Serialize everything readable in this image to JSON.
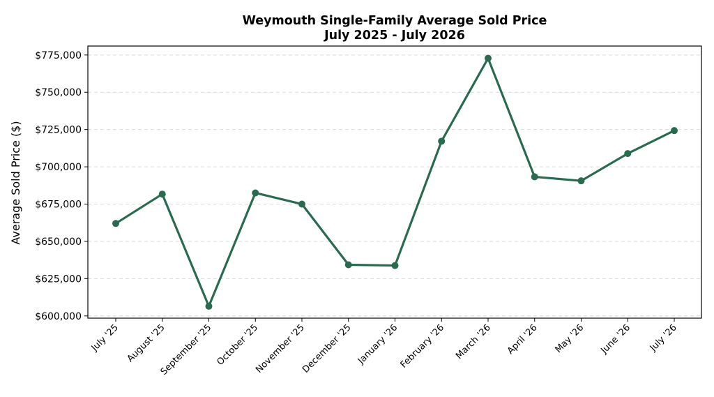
{
  "chart_data": {
    "type": "line",
    "title_line1": "Weymouth Single-Family Average Sold Price",
    "title_line2": "July 2025 - July 2026",
    "xlabel": "",
    "ylabel": "Average Sold Price ($)",
    "ylim": [
      598500,
      781000
    ],
    "yticks": [
      600000,
      625000,
      650000,
      675000,
      700000,
      725000,
      750000,
      775000
    ],
    "ytick_labels": [
      "$600,000",
      "$625,000",
      "$650,000",
      "$675,000",
      "$700,000",
      "$725,000",
      "$750,000",
      "$775,000"
    ],
    "grid": true,
    "legend": "none",
    "color": "#2a6b4f",
    "categories": [
      "July '25",
      "August '25",
      "September '25",
      "October '25",
      "November '25",
      "December '25",
      "January '26",
      "February '26",
      "March '26",
      "April '26",
      "May '26",
      "June '26",
      "July '26"
    ],
    "series": [
      {
        "values": [
          662000,
          681700,
          606500,
          682500,
          675000,
          634300,
          633800,
          717200,
          772800,
          693300,
          690600,
          708900,
          724300
        ]
      }
    ]
  }
}
